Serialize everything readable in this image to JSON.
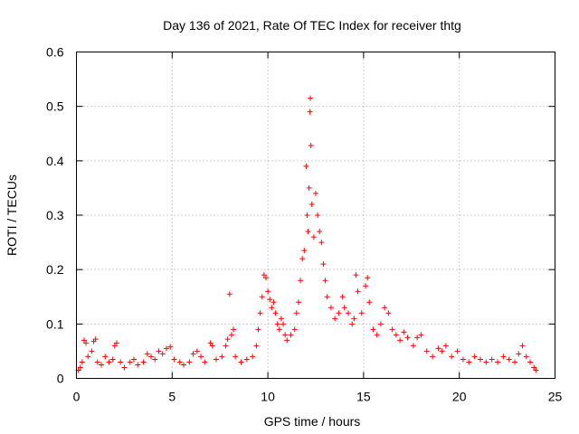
{
  "chart_data": {
    "type": "scatter",
    "title": "Day 136 of 2021, Rate Of TEC Index for receiver thtg",
    "xlabel": "GPS time / hours",
    "ylabel": "ROTI / TECUs",
    "xlim": [
      0,
      25
    ],
    "ylim": [
      0,
      0.6
    ],
    "xticks": [
      0,
      5,
      10,
      15,
      20,
      25
    ],
    "yticks": [
      0,
      0.1,
      0.2,
      0.3,
      0.4,
      0.5,
      0.6
    ],
    "xtick_labels": [
      "0",
      "5",
      "10",
      "15",
      "20",
      "25"
    ],
    "ytick_labels": [
      "0",
      "0.1",
      "0.2",
      "0.3",
      "0.4",
      "0.5",
      "0.6"
    ],
    "grid": true,
    "marker": "+",
    "color": "#ff0000",
    "series": [
      {
        "name": "ROTI",
        "points": [
          [
            0.1,
            0.015
          ],
          [
            0.2,
            0.02
          ],
          [
            0.3,
            0.03
          ],
          [
            0.4,
            0.07
          ],
          [
            0.5,
            0.065
          ],
          [
            0.6,
            0.04
          ],
          [
            0.8,
            0.05
          ],
          [
            0.9,
            0.068
          ],
          [
            1.0,
            0.072
          ],
          [
            1.1,
            0.03
          ],
          [
            1.3,
            0.025
          ],
          [
            1.5,
            0.04
          ],
          [
            1.7,
            0.03
          ],
          [
            1.9,
            0.035
          ],
          [
            2.0,
            0.06
          ],
          [
            2.1,
            0.065
          ],
          [
            2.3,
            0.03
          ],
          [
            2.5,
            0.02
          ],
          [
            2.8,
            0.03
          ],
          [
            3.0,
            0.035
          ],
          [
            3.2,
            0.025
          ],
          [
            3.5,
            0.03
          ],
          [
            3.7,
            0.045
          ],
          [
            3.9,
            0.04
          ],
          [
            4.1,
            0.035
          ],
          [
            4.3,
            0.05
          ],
          [
            4.5,
            0.045
          ],
          [
            4.7,
            0.055
          ],
          [
            4.9,
            0.058
          ],
          [
            5.1,
            0.035
          ],
          [
            5.4,
            0.03
          ],
          [
            5.6,
            0.025
          ],
          [
            5.9,
            0.03
          ],
          [
            6.1,
            0.045
          ],
          [
            6.3,
            0.05
          ],
          [
            6.5,
            0.04
          ],
          [
            6.7,
            0.03
          ],
          [
            7.0,
            0.065
          ],
          [
            7.1,
            0.06
          ],
          [
            7.3,
            0.035
          ],
          [
            7.6,
            0.04
          ],
          [
            7.8,
            0.06
          ],
          [
            7.9,
            0.072
          ],
          [
            8.0,
            0.155
          ],
          [
            8.1,
            0.08
          ],
          [
            8.2,
            0.09
          ],
          [
            8.3,
            0.04
          ],
          [
            8.6,
            0.03
          ],
          [
            8.9,
            0.035
          ],
          [
            9.2,
            0.04
          ],
          [
            9.4,
            0.06
          ],
          [
            9.5,
            0.09
          ],
          [
            9.6,
            0.12
          ],
          [
            9.7,
            0.15
          ],
          [
            9.8,
            0.19
          ],
          [
            9.9,
            0.185
          ],
          [
            10.0,
            0.16
          ],
          [
            10.1,
            0.145
          ],
          [
            10.2,
            0.13
          ],
          [
            10.3,
            0.14
          ],
          [
            10.4,
            0.12
          ],
          [
            10.5,
            0.1
          ],
          [
            10.6,
            0.09
          ],
          [
            10.7,
            0.11
          ],
          [
            10.8,
            0.1
          ],
          [
            10.9,
            0.08
          ],
          [
            11.0,
            0.07
          ],
          [
            11.2,
            0.08
          ],
          [
            11.4,
            0.09
          ],
          [
            11.5,
            0.12
          ],
          [
            11.6,
            0.14
          ],
          [
            11.7,
            0.18
          ],
          [
            11.8,
            0.22
          ],
          [
            11.9,
            0.235
          ],
          [
            12.0,
            0.39
          ],
          [
            12.05,
            0.3
          ],
          [
            12.1,
            0.27
          ],
          [
            12.15,
            0.35
          ],
          [
            12.2,
            0.49
          ],
          [
            12.22,
            0.515
          ],
          [
            12.25,
            0.428
          ],
          [
            12.3,
            0.32
          ],
          [
            12.4,
            0.26
          ],
          [
            12.5,
            0.34
          ],
          [
            12.6,
            0.3
          ],
          [
            12.7,
            0.27
          ],
          [
            12.8,
            0.25
          ],
          [
            12.9,
            0.21
          ],
          [
            13.0,
            0.18
          ],
          [
            13.1,
            0.15
          ],
          [
            13.3,
            0.13
          ],
          [
            13.5,
            0.11
          ],
          [
            13.7,
            0.12
          ],
          [
            13.9,
            0.15
          ],
          [
            14.0,
            0.13
          ],
          [
            14.2,
            0.12
          ],
          [
            14.4,
            0.1
          ],
          [
            14.5,
            0.11
          ],
          [
            14.6,
            0.19
          ],
          [
            14.7,
            0.16
          ],
          [
            14.9,
            0.12
          ],
          [
            15.1,
            0.17
          ],
          [
            15.2,
            0.185
          ],
          [
            15.3,
            0.14
          ],
          [
            15.5,
            0.09
          ],
          [
            15.7,
            0.08
          ],
          [
            15.9,
            0.1
          ],
          [
            16.1,
            0.13
          ],
          [
            16.3,
            0.12
          ],
          [
            16.5,
            0.09
          ],
          [
            16.7,
            0.08
          ],
          [
            16.9,
            0.07
          ],
          [
            17.1,
            0.085
          ],
          [
            17.3,
            0.075
          ],
          [
            17.6,
            0.06
          ],
          [
            17.8,
            0.075
          ],
          [
            18.0,
            0.08
          ],
          [
            18.3,
            0.05
          ],
          [
            18.6,
            0.04
          ],
          [
            18.9,
            0.055
          ],
          [
            19.1,
            0.05
          ],
          [
            19.3,
            0.06
          ],
          [
            19.6,
            0.04
          ],
          [
            19.9,
            0.05
          ],
          [
            20.2,
            0.035
          ],
          [
            20.5,
            0.03
          ],
          [
            20.8,
            0.04
          ],
          [
            21.1,
            0.035
          ],
          [
            21.4,
            0.03
          ],
          [
            21.7,
            0.035
          ],
          [
            22.0,
            0.03
          ],
          [
            22.3,
            0.04
          ],
          [
            22.6,
            0.035
          ],
          [
            22.9,
            0.03
          ],
          [
            23.1,
            0.045
          ],
          [
            23.3,
            0.06
          ],
          [
            23.5,
            0.04
          ],
          [
            23.7,
            0.03
          ],
          [
            23.9,
            0.02
          ],
          [
            24.0,
            0.015
          ]
        ]
      }
    ]
  }
}
